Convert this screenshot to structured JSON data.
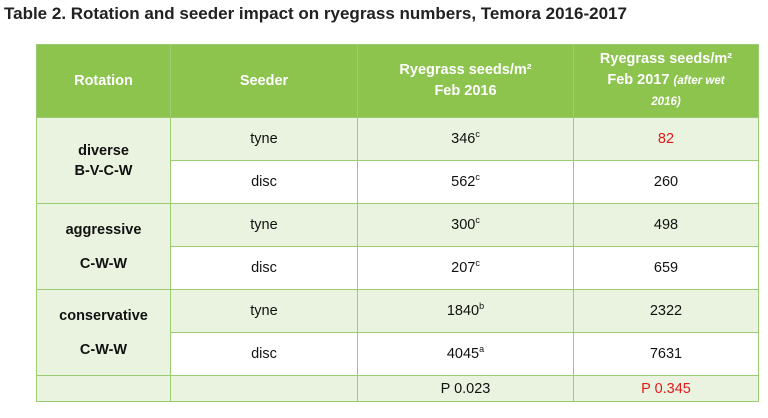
{
  "title": "Table 2. Rotation and seeder impact on ryegrass numbers, Temora 2016-2017",
  "headers": {
    "rotation": "Rotation",
    "seeder": "Seeder",
    "feb2016_line1": "Ryegrass seeds/m²",
    "feb2016_line2": "Feb 2016",
    "feb2017_line1": "Ryegrass seeds/m²",
    "feb2017_line2": "Feb 2017",
    "feb2017_note_a": "(after wet",
    "feb2017_note_b": "2016)"
  },
  "groups": [
    {
      "name": "diverse",
      "code": "B-V-C-W"
    },
    {
      "name": "aggressive",
      "code": "C-W-W"
    },
    {
      "name": "conservative",
      "code": "C-W-W"
    }
  ],
  "rows": [
    {
      "seeder": "tyne",
      "v2016": "346",
      "sup": "c",
      "v2017": "82"
    },
    {
      "seeder": "disc",
      "v2016": "562",
      "sup": "c",
      "v2017": "260"
    },
    {
      "seeder": "tyne",
      "v2016": "300",
      "sup": "c",
      "v2017": "498"
    },
    {
      "seeder": "disc",
      "v2016": "207",
      "sup": "c",
      "v2017": "659"
    },
    {
      "seeder": "tyne",
      "v2016": "1840",
      "sup": "b",
      "v2017": "2322"
    },
    {
      "seeder": "disc",
      "v2016": "4045",
      "sup": "a",
      "v2017": "7631"
    }
  ],
  "footer": {
    "p2016": "P 0.023",
    "p2017": "P 0.345"
  },
  "colors": {
    "header_bg": "#8cc44e",
    "shade_bg": "#eaf3df",
    "highlight": "#e01a1a"
  }
}
